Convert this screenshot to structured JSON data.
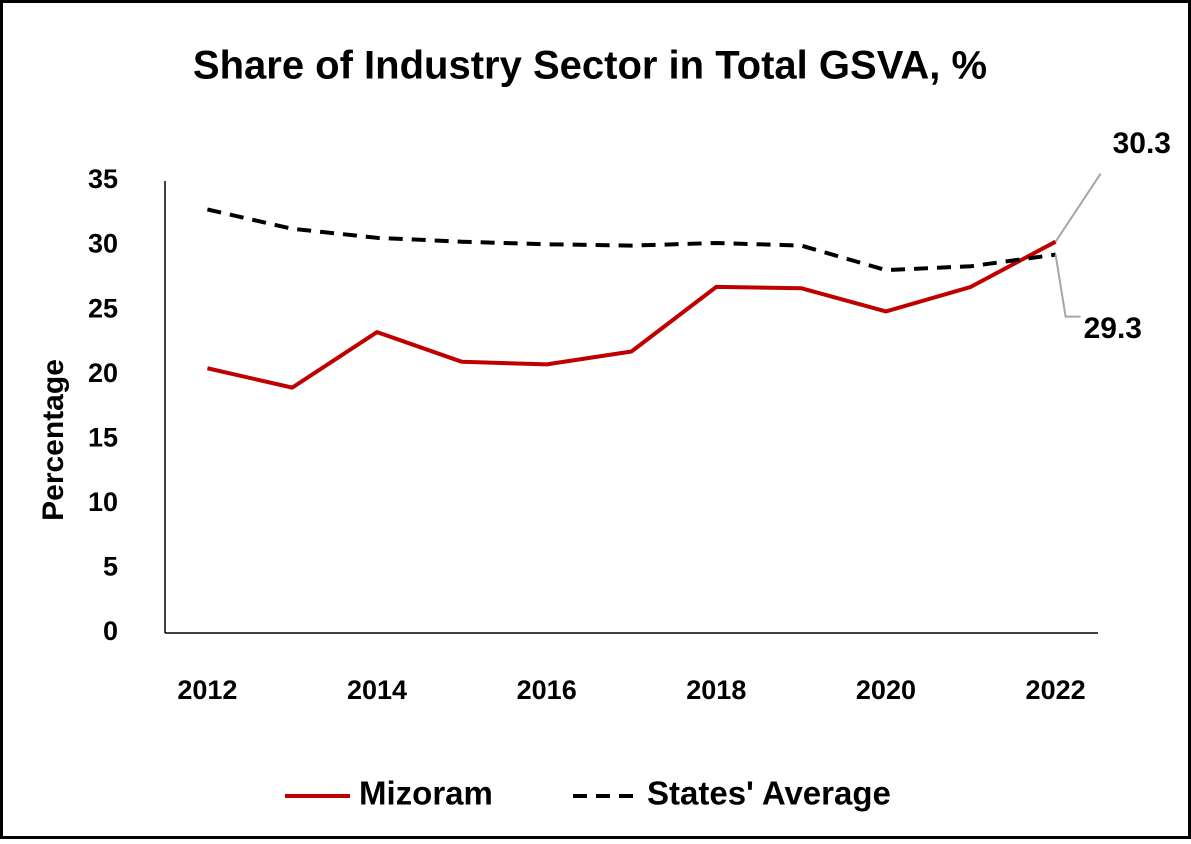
{
  "chart_data": {
    "type": "line",
    "title": "Share of Industry Sector in Total GSVA, %",
    "y_label": "Percentage",
    "x": [
      2012,
      2013,
      2014,
      2015,
      2016,
      2017,
      2018,
      2019,
      2020,
      2021,
      2022
    ],
    "xlim": [
      2011.5,
      2022.5
    ],
    "xticks": [
      2012,
      2014,
      2016,
      2018,
      2020,
      2022
    ],
    "ylim": [
      0,
      35
    ],
    "yticks": [
      0,
      5,
      10,
      15,
      20,
      25,
      30,
      35
    ],
    "grid": false,
    "legend": "bottom",
    "series": [
      {
        "name": "Mizoram",
        "color": "#c00000",
        "dash": "solid",
        "values": [
          20.5,
          19.0,
          23.3,
          21.0,
          20.8,
          21.8,
          26.8,
          26.7,
          24.9,
          26.8,
          30.3
        ]
      },
      {
        "name": "States' Average",
        "color": "#000000",
        "dash": "dashed",
        "values": [
          32.8,
          31.3,
          30.6,
          30.3,
          30.1,
          30.0,
          30.2,
          30.0,
          28.1,
          28.4,
          29.3
        ]
      }
    ]
  }
}
